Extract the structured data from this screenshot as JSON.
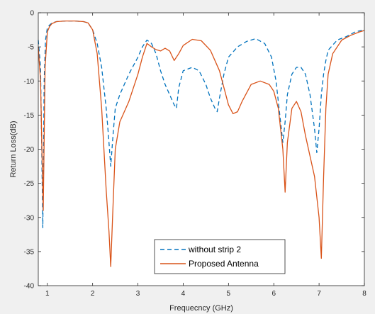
{
  "chart_data": {
    "type": "line",
    "title": "",
    "xlabel": "Frequecncy (GHz)",
    "ylabel": "Return Loss(dB)",
    "xlim": [
      0.8,
      8
    ],
    "ylim": [
      -40,
      0
    ],
    "xticks": [
      1,
      2,
      3,
      4,
      5,
      6,
      7,
      8
    ],
    "yticks": [
      0,
      -5,
      -10,
      -15,
      -20,
      -25,
      -30,
      -35,
      -40
    ],
    "grid": false,
    "legend_location": "lower center",
    "series": [
      {
        "name": "without strip 2",
        "color": "#0072bd",
        "style": "dashed",
        "x": [
          0.8,
          0.85,
          0.9,
          0.93,
          0.96,
          1.0,
          1.05,
          1.1,
          1.2,
          1.4,
          1.6,
          1.8,
          1.9,
          2.0,
          2.1,
          2.2,
          2.3,
          2.35,
          2.4,
          2.45,
          2.5,
          2.6,
          2.8,
          3.0,
          3.1,
          3.2,
          3.3,
          3.4,
          3.5,
          3.6,
          3.7,
          3.8,
          3.85,
          3.9,
          4.0,
          4.2,
          4.35,
          4.5,
          4.6,
          4.7,
          4.75,
          4.8,
          4.9,
          5.0,
          5.2,
          5.4,
          5.6,
          5.8,
          5.95,
          6.05,
          6.15,
          6.2,
          6.25,
          6.3,
          6.4,
          6.5,
          6.6,
          6.7,
          6.8,
          6.9,
          6.95,
          7.0,
          7.05,
          7.1,
          7.15,
          7.2,
          7.4,
          7.6,
          7.8,
          8.0
        ],
        "y": [
          -4,
          -8,
          -31.5,
          -10,
          -4,
          -2.2,
          -1.8,
          -1.5,
          -1.3,
          -1.2,
          -1.2,
          -1.3,
          -1.5,
          -2.5,
          -4.5,
          -8,
          -14,
          -18,
          -22.5,
          -18,
          -14,
          -12,
          -9,
          -6.5,
          -5,
          -4,
          -4.5,
          -6,
          -8.5,
          -10.5,
          -12,
          -13.5,
          -14,
          -11,
          -8.5,
          -8,
          -8.5,
          -10.5,
          -12.5,
          -14,
          -14.5,
          -12.5,
          -9,
          -6.5,
          -5,
          -4.2,
          -3.8,
          -4.5,
          -6.5,
          -10,
          -16,
          -19,
          -16,
          -12,
          -9,
          -8,
          -8,
          -9,
          -12,
          -17,
          -20.5,
          -17,
          -12,
          -9,
          -7,
          -5.5,
          -4,
          -3.5,
          -2.8,
          -2.5
        ]
      },
      {
        "name": "Proposed Antenna",
        "color": "#d95319",
        "style": "solid",
        "x": [
          0.8,
          0.85,
          0.88,
          0.91,
          0.95,
          1.0,
          1.05,
          1.1,
          1.2,
          1.4,
          1.6,
          1.8,
          1.9,
          2.0,
          2.1,
          2.2,
          2.3,
          2.36,
          2.4,
          2.44,
          2.5,
          2.6,
          2.8,
          3.0,
          3.1,
          3.2,
          3.3,
          3.4,
          3.5,
          3.6,
          3.7,
          3.8,
          3.9,
          4.0,
          4.2,
          4.4,
          4.6,
          4.8,
          5.0,
          5.1,
          5.2,
          5.3,
          5.5,
          5.7,
          5.9,
          6.0,
          6.1,
          6.2,
          6.25,
          6.3,
          6.4,
          6.5,
          6.6,
          6.7,
          6.8,
          6.9,
          7.0,
          7.05,
          7.1,
          7.15,
          7.2,
          7.3,
          7.5,
          7.7,
          7.9,
          8.0
        ],
        "y": [
          -5,
          -10,
          -20,
          -29,
          -8,
          -2.8,
          -2,
          -1.6,
          -1.3,
          -1.2,
          -1.2,
          -1.3,
          -1.5,
          -2.5,
          -6,
          -14,
          -26,
          -32,
          -37.2,
          -30,
          -20,
          -16,
          -13,
          -9,
          -6.5,
          -4.5,
          -5,
          -5.4,
          -5.6,
          -5.2,
          -5.6,
          -7,
          -6,
          -4.8,
          -3.9,
          -4.1,
          -5.5,
          -8.5,
          -13.5,
          -14.8,
          -14.5,
          -13,
          -10.5,
          -10,
          -10.5,
          -11.5,
          -14,
          -20,
          -26.3,
          -19,
          -14,
          -13,
          -14.5,
          -18,
          -21,
          -24,
          -30,
          -36,
          -24,
          -14,
          -9,
          -6,
          -4,
          -3.3,
          -2.8,
          -2.6
        ]
      }
    ]
  }
}
